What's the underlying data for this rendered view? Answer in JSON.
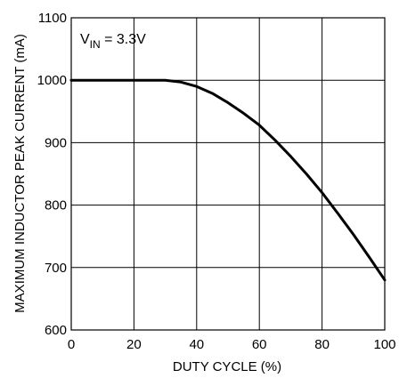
{
  "chart_data": {
    "type": "line",
    "title": "",
    "xlabel": "DUTY CYCLE (%)",
    "ylabel": "MAXIMUM INDUCTOR PEAK CURRENT (mA)",
    "xlim": [
      0,
      100
    ],
    "ylim": [
      600,
      1100
    ],
    "xticks": [
      0,
      20,
      40,
      60,
      80,
      100
    ],
    "yticks": [
      600,
      700,
      800,
      900,
      1000,
      1100
    ],
    "grid": true,
    "annotation": {
      "prefix": "V",
      "subscript": "IN",
      "suffix": " = 3.3V"
    },
    "series": [
      {
        "color": "#000000",
        "x": [
          0,
          10,
          20,
          25,
          30,
          35,
          40,
          45,
          50,
          55,
          60,
          65,
          70,
          75,
          80,
          85,
          90,
          95,
          100
        ],
        "y": [
          1000,
          1000,
          1000,
          1000,
          1000,
          997,
          990,
          979,
          964,
          947,
          928,
          904,
          878,
          850,
          820,
          787,
          753,
          717,
          680
        ]
      }
    ]
  }
}
